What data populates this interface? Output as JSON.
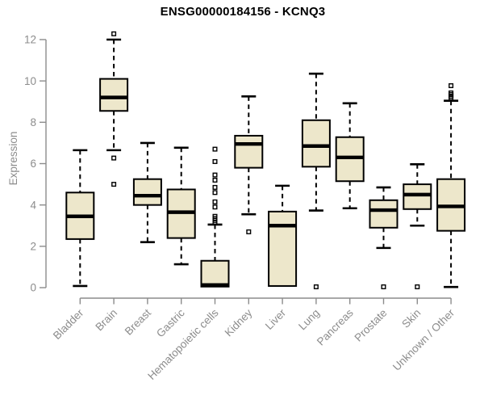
{
  "chart_data": {
    "type": "boxplot",
    "title": "ENSG00000184156 - KCNQ3",
    "ylabel": "Expression",
    "xlabel": "",
    "ylim": [
      0,
      12
    ],
    "yticks": [
      "0",
      "2",
      "4",
      "6",
      "8",
      "10",
      "12"
    ],
    "grid": false,
    "legend": "none",
    "categories": [
      "Bladder",
      "Brain",
      "Breast",
      "Gastric",
      "Hematopoietic cells",
      "Kidney",
      "Liver",
      "Lung",
      "Pancreas",
      "Prostate",
      "Skin",
      "Unknown / Other"
    ],
    "series": [
      {
        "category": "Bladder",
        "whisker_low": 0.08,
        "q1": 2.35,
        "median": 3.45,
        "q3": 4.6,
        "whisker_high": 6.65,
        "outliers": []
      },
      {
        "category": "Brain",
        "whisker_low": 6.65,
        "q1": 8.55,
        "median": 9.2,
        "q3": 10.1,
        "whisker_high": 12.0,
        "outliers": [
          12.28,
          6.27,
          5.0
        ]
      },
      {
        "category": "Breast",
        "whisker_low": 2.2,
        "q1": 4.0,
        "median": 4.45,
        "q3": 5.25,
        "whisker_high": 7.0,
        "outliers": []
      },
      {
        "category": "Gastric",
        "whisker_low": 1.13,
        "q1": 2.4,
        "median": 3.65,
        "q3": 4.75,
        "whisker_high": 6.77,
        "outliers": []
      },
      {
        "category": "Hematopoietic cells",
        "whisker_low": 0.05,
        "q1": 0.05,
        "median": 0.13,
        "q3": 1.3,
        "whisker_high": 3.05,
        "outliers": [
          6.7,
          6.1,
          5.45,
          5.2,
          4.85,
          4.6,
          4.15,
          3.9,
          3.45,
          3.35,
          3.25,
          3.15
        ]
      },
      {
        "category": "Kidney",
        "whisker_low": 3.55,
        "q1": 5.8,
        "median": 6.95,
        "q3": 7.35,
        "whisker_high": 9.25,
        "outliers": [
          2.7
        ]
      },
      {
        "category": "Liver",
        "whisker_low": 0.08,
        "q1": 0.08,
        "median": 3.0,
        "q3": 3.68,
        "whisker_high": 4.93,
        "outliers": []
      },
      {
        "category": "Lung",
        "whisker_low": 3.73,
        "q1": 5.85,
        "median": 6.85,
        "q3": 8.1,
        "whisker_high": 10.35,
        "outliers": [
          0.04
        ]
      },
      {
        "category": "Pancreas",
        "whisker_low": 3.84,
        "q1": 5.15,
        "median": 6.3,
        "q3": 7.28,
        "whisker_high": 8.92,
        "outliers": []
      },
      {
        "category": "Prostate",
        "whisker_low": 1.92,
        "q1": 2.9,
        "median": 3.75,
        "q3": 4.23,
        "whisker_high": 4.85,
        "outliers": [
          0.04
        ]
      },
      {
        "category": "Skin",
        "whisker_low": 3.0,
        "q1": 3.8,
        "median": 4.5,
        "q3": 5.0,
        "whisker_high": 5.97,
        "outliers": [
          0.04
        ]
      },
      {
        "category": "Unknown / Other",
        "whisker_low": 0.03,
        "q1": 2.75,
        "median": 3.93,
        "q3": 5.25,
        "whisker_high": 9.04,
        "outliers": [
          9.77,
          9.42,
          9.34,
          9.26,
          9.18
        ]
      }
    ],
    "colors": {
      "box_fill": "#EDE7CB",
      "box_stroke": "#000000",
      "median": "#000000",
      "whisker": "#000000",
      "outlier": "#000000",
      "axis": "#8C8C8C",
      "tick_text": "#8C8C8C",
      "title": "#000000",
      "background": "#FFFFFF"
    }
  }
}
